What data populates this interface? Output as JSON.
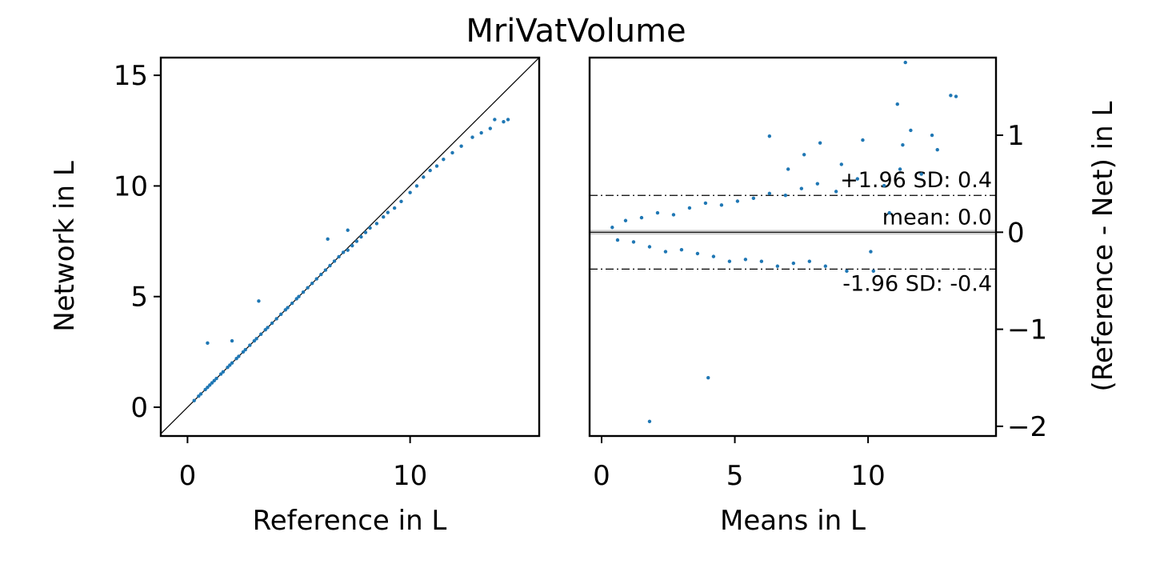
{
  "figure": {
    "title": "MriVatVolume"
  },
  "chart_data": [
    {
      "type": "scatter",
      "panel": "left",
      "xlabel": "Reference in L",
      "ylabel": "Network in L",
      "xlim": [
        -1.2,
        15.8
      ],
      "ylim": [
        -1.3,
        15.8
      ],
      "xticks": [
        0,
        10
      ],
      "xtick_labels": [
        "0",
        "10"
      ],
      "yticks": [
        0,
        5,
        10,
        15
      ],
      "yticks_labels": [
        "0",
        "5",
        "10",
        "15"
      ],
      "identity_line": true,
      "point_color": "#1f77b4",
      "series": [
        {
          "x": [
            0.3,
            0.5,
            0.6,
            0.8,
            0.9,
            1.0,
            1.1,
            1.2,
            1.3,
            1.5,
            1.6,
            1.8,
            1.9,
            2.0,
            2.2,
            2.3,
            2.5,
            2.6,
            2.8,
            3.0,
            3.1,
            3.3,
            3.5,
            3.6,
            3.8,
            4.0,
            4.2,
            4.4,
            4.5,
            4.7,
            4.9,
            5.0,
            5.2,
            5.4,
            5.6,
            5.8,
            6.0,
            6.2,
            6.4,
            6.6,
            6.8,
            7.0,
            7.2,
            7.4,
            7.6,
            7.8,
            8.0,
            8.2,
            8.5,
            8.8,
            9.0,
            9.3,
            9.6,
            10.0,
            10.3,
            10.6,
            10.9,
            11.2,
            11.5,
            11.9,
            12.3,
            12.8,
            13.2,
            13.6,
            13.8,
            14.2,
            14.4,
            0.9,
            2.0,
            3.2,
            6.3,
            7.2
          ],
          "y": [
            0.3,
            0.5,
            0.6,
            0.8,
            0.9,
            1.0,
            1.1,
            1.2,
            1.3,
            1.5,
            1.6,
            1.8,
            1.9,
            2.0,
            2.2,
            2.3,
            2.5,
            2.6,
            2.8,
            3.0,
            3.1,
            3.3,
            3.5,
            3.6,
            3.8,
            4.0,
            4.2,
            4.4,
            4.5,
            4.7,
            4.9,
            5.0,
            5.2,
            5.4,
            5.6,
            5.8,
            6.0,
            6.2,
            6.4,
            6.6,
            6.8,
            7.0,
            7.1,
            7.3,
            7.5,
            7.7,
            7.9,
            8.1,
            8.3,
            8.6,
            8.8,
            9.0,
            9.3,
            9.7,
            10.0,
            10.4,
            10.7,
            10.9,
            11.2,
            11.5,
            11.8,
            12.2,
            12.4,
            12.6,
            13.0,
            12.9,
            13.0,
            2.9,
            3.0,
            4.8,
            7.6,
            8.0
          ]
        }
      ]
    },
    {
      "type": "scatter",
      "panel": "right",
      "xlabel": "Means in L",
      "ylabel": "(Reference - Net) in L",
      "xlim": [
        -0.45,
        14.8
      ],
      "ylim": [
        -2.1,
        1.8
      ],
      "xticks": [
        0,
        5,
        10
      ],
      "xtick_labels": [
        "0",
        "5",
        "10"
      ],
      "yticks": [
        -2,
        -1,
        0,
        1
      ],
      "ytick_labels": [
        "−2",
        "−1",
        "0",
        "1"
      ],
      "yaxis_side": "right",
      "point_color": "#1f77b4",
      "reference_lines": [
        {
          "label": "+1.96 SD: 0.4",
          "y": 0.38,
          "style": "dashdot"
        },
        {
          "label": "mean: 0.0",
          "y": 0.0,
          "style": "solid"
        },
        {
          "label": "-1.96 SD: -0.4",
          "y": -0.38,
          "style": "dashdot"
        }
      ],
      "series": [
        {
          "x": [
            0.4,
            0.6,
            0.9,
            1.2,
            1.5,
            1.8,
            2.1,
            2.4,
            2.7,
            3.0,
            3.3,
            3.6,
            3.9,
            4.2,
            4.5,
            4.8,
            5.1,
            5.4,
            5.7,
            6.0,
            6.3,
            6.6,
            6.9,
            7.2,
            7.5,
            7.8,
            8.1,
            8.4,
            8.8,
            9.2,
            9.6,
            10.1,
            10.6,
            11.2,
            11.4,
            11.1,
            11.6,
            13.3,
            13.1,
            12.6,
            12.4,
            11.3,
            9.8,
            8.2,
            7.0,
            4.0,
            1.8,
            6.3,
            7.6,
            9.0,
            10.2,
            10.8,
            12.0
          ],
          "y": [
            0.05,
            -0.08,
            0.12,
            -0.1,
            0.15,
            -0.15,
            0.2,
            -0.2,
            0.18,
            -0.18,
            0.25,
            -0.22,
            0.3,
            -0.25,
            0.28,
            -0.3,
            0.32,
            -0.28,
            0.35,
            -0.3,
            0.4,
            -0.35,
            0.38,
            -0.32,
            0.45,
            -0.3,
            0.5,
            -0.35,
            0.42,
            -0.4,
            0.55,
            -0.2,
            0.48,
            0.65,
            1.75,
            1.32,
            1.05,
            1.4,
            1.41,
            0.85,
            1.0,
            0.9,
            0.95,
            0.92,
            0.65,
            -1.5,
            -1.95,
            0.99,
            0.8,
            0.7,
            -0.4,
            0.2,
            0.6
          ]
        }
      ]
    }
  ]
}
